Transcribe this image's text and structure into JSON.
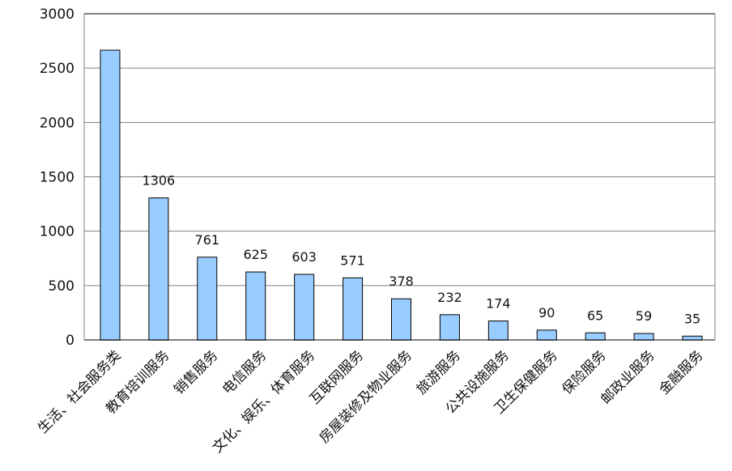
{
  "chart_data": {
    "type": "bar",
    "categories": [
      "生活、社会服务类",
      "教育培训服务",
      "销售服务",
      "电信服务",
      "文化、娱乐、体育服务",
      "互联网服务",
      "房屋装修及物业服务",
      "旅游服务",
      "公共设施服务",
      "卫生保健服务",
      "保险服务",
      "邮政业服务",
      "金融服务"
    ],
    "values": [
      2665,
      1306,
      761,
      625,
      603,
      571,
      378,
      232,
      174,
      90,
      65,
      59,
      35
    ],
    "data_labels": [
      "",
      "1306",
      "761",
      "625",
      "603",
      "571",
      "378",
      "232",
      "174",
      "90",
      "65",
      "59",
      "35"
    ],
    "yticks": [
      "0",
      "500",
      "1000",
      "1500",
      "2000",
      "2500",
      "3000"
    ],
    "ylim": [
      0,
      3000
    ],
    "grid": true,
    "colors": {
      "bar_fill": "#99ccff",
      "bar_stroke": "#000000",
      "grid": "#808080"
    }
  }
}
